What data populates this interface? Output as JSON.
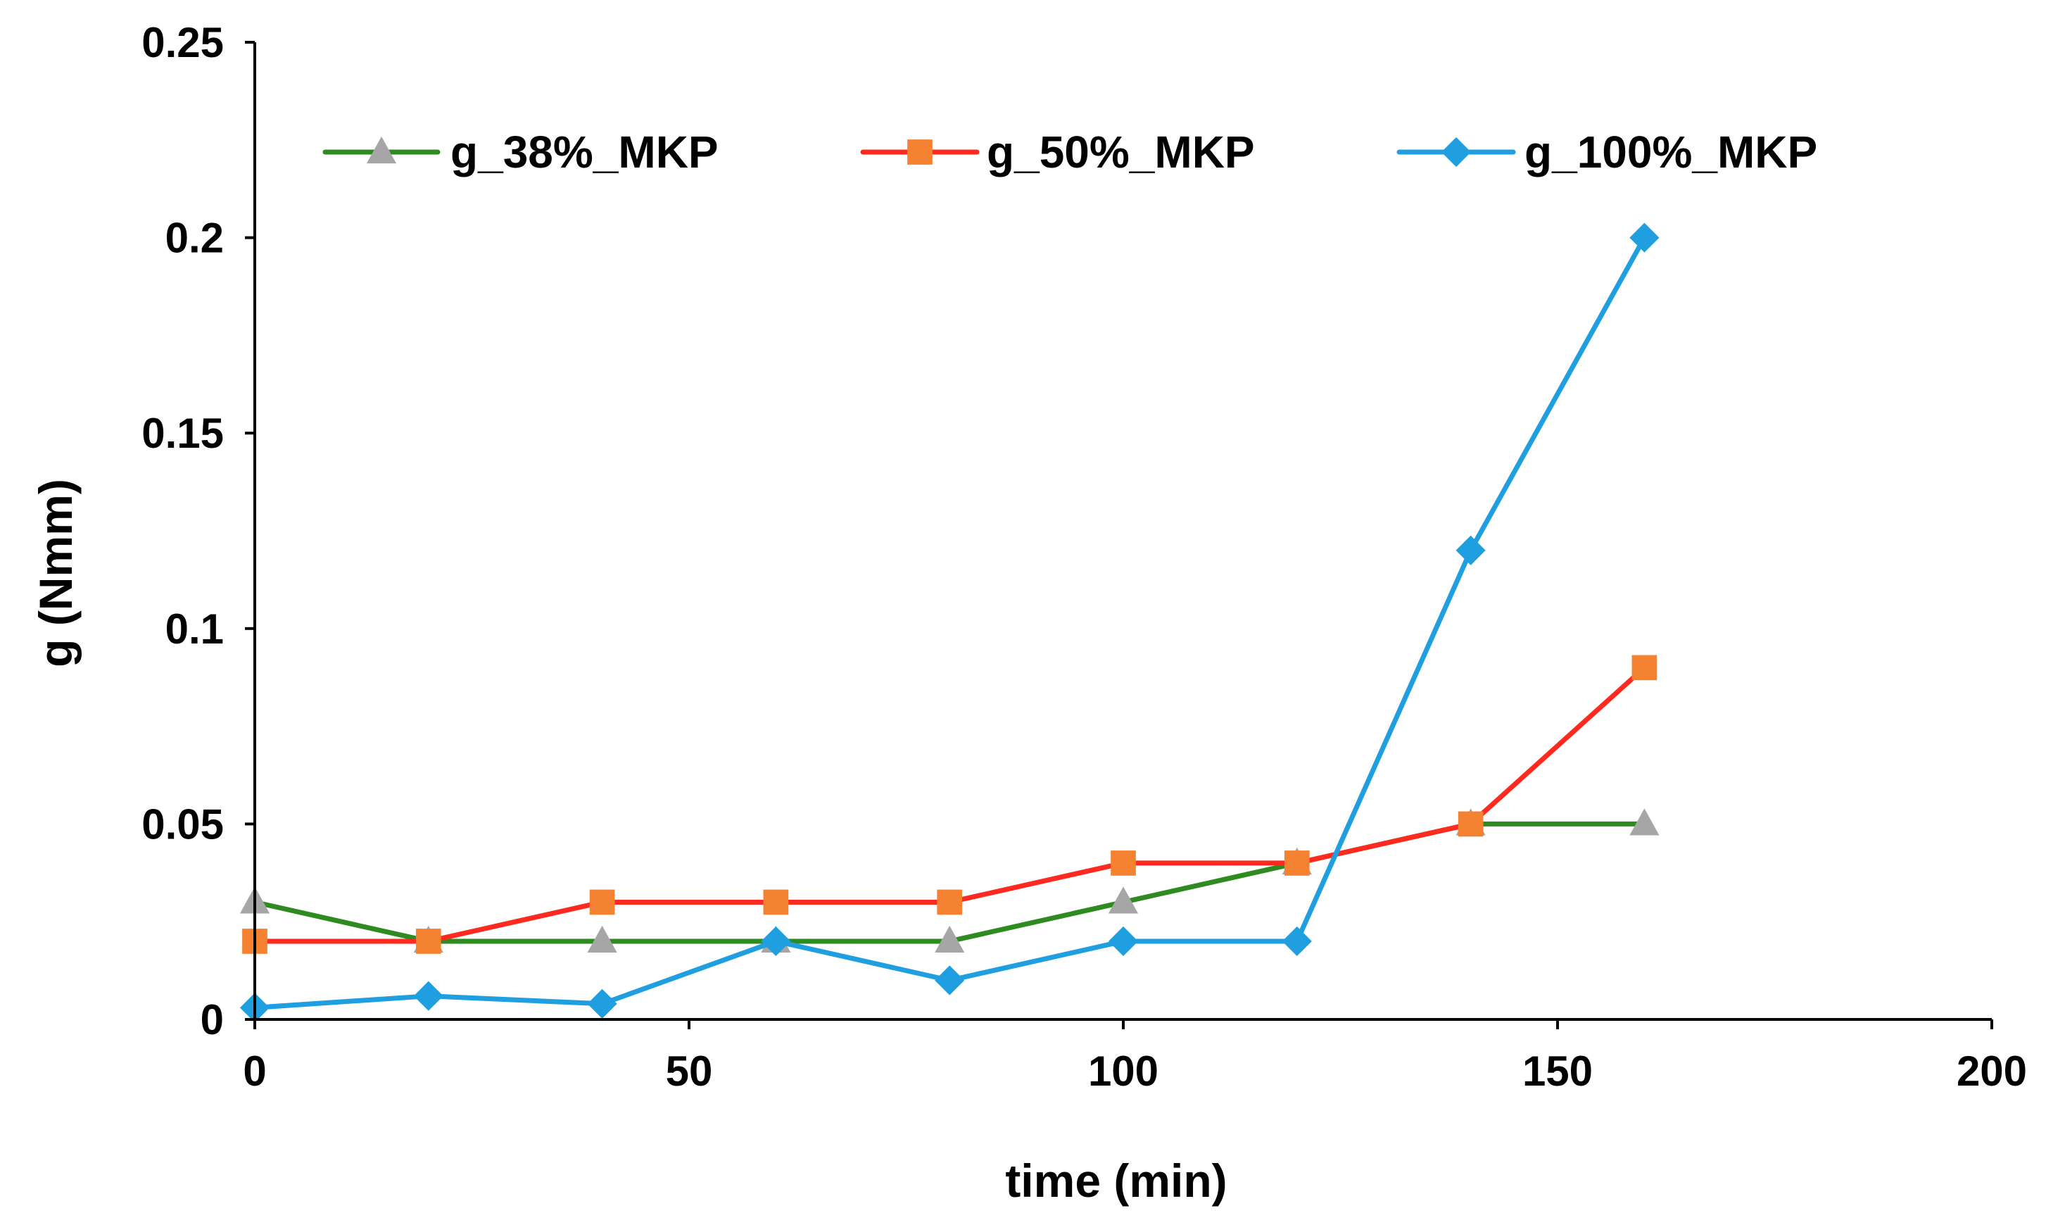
{
  "chart_data": {
    "type": "line",
    "title": "",
    "xlabel": "time (min)",
    "ylabel": "g (Nmm)",
    "xlim": [
      0,
      200
    ],
    "ylim": [
      0,
      0.25
    ],
    "xticks": [
      "0",
      "50",
      "100",
      "150",
      "200"
    ],
    "yticks": [
      "0",
      "0.05",
      "0.1",
      "0.15",
      "0.2",
      "0.25"
    ],
    "grid": false,
    "legend_position": "top",
    "series": [
      {
        "name": "g_38%_MKP",
        "line_color": "#2E8B1F",
        "marker": "triangle",
        "marker_color": "#A6A6A6",
        "x": [
          0,
          20,
          40,
          60,
          80,
          100,
          120,
          140,
          160
        ],
        "y": [
          0.03,
          0.02,
          0.02,
          0.02,
          0.02,
          0.03,
          0.04,
          0.05,
          0.05
        ]
      },
      {
        "name": "g_50%_MKP",
        "line_color": "#FF2A1F",
        "marker": "square",
        "marker_color": "#F58231",
        "x": [
          0,
          20,
          40,
          60,
          80,
          100,
          120,
          140,
          160
        ],
        "y": [
          0.02,
          0.02,
          0.03,
          0.03,
          0.03,
          0.04,
          0.04,
          0.05,
          0.09
        ]
      },
      {
        "name": "g_100%_MKP",
        "line_color": "#1F9FE0",
        "marker": "diamond",
        "marker_color": "#1F9FE0",
        "x": [
          0,
          20,
          40,
          60,
          80,
          100,
          120,
          140,
          160
        ],
        "y": [
          0.003,
          0.006,
          0.004,
          0.02,
          0.01,
          0.02,
          0.02,
          0.12,
          0.2
        ]
      }
    ]
  }
}
